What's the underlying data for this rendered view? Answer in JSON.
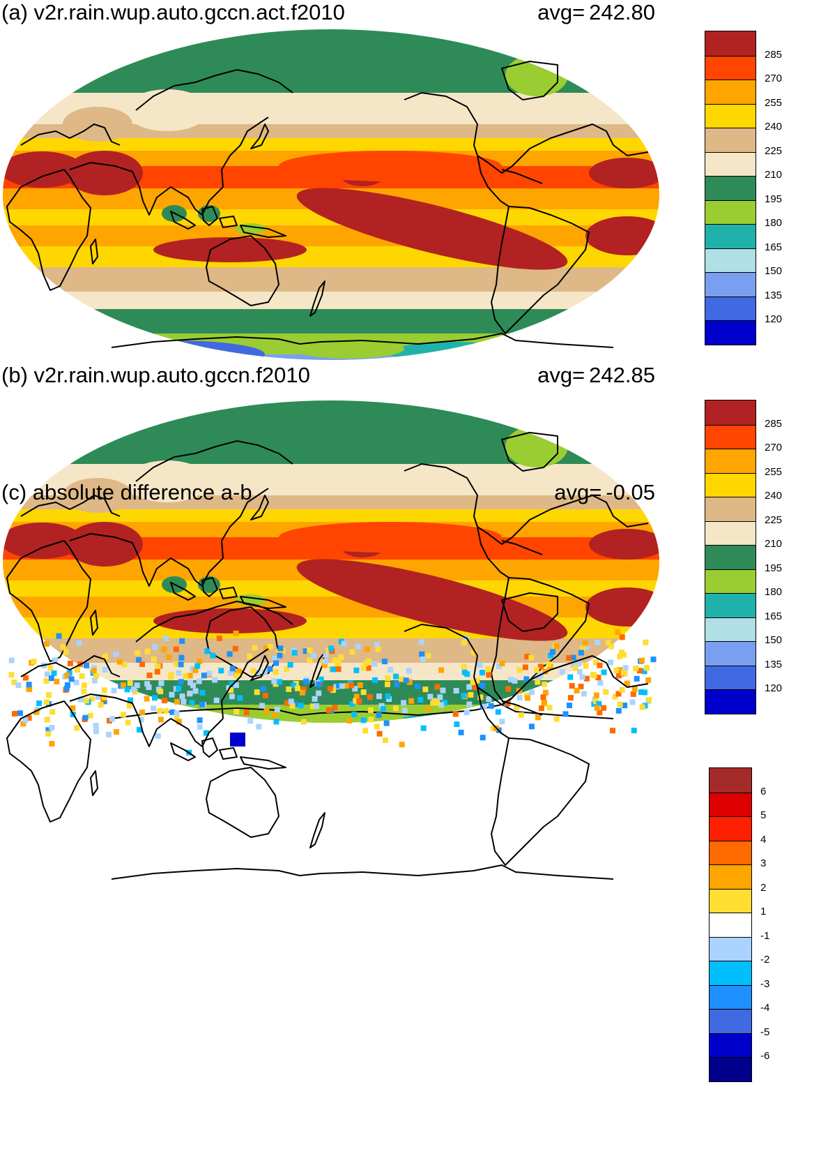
{
  "panels": [
    {
      "id": "a",
      "title": "(a) v2r.rain.wup.auto.gccn.act.f2010",
      "avg_label": "avg=",
      "avg_value": "242.80",
      "colorbar": {
        "labels": [
          "285",
          "270",
          "255",
          "240",
          "225",
          "210",
          "195",
          "180",
          "165",
          "150",
          "135",
          "120"
        ],
        "colors": [
          "#b22222",
          "#ff4500",
          "#ffa500",
          "#ffd700",
          "#deb887",
          "#f5e6c8",
          "#2e8b57",
          "#9acd32",
          "#20b2aa",
          "#b0e0e6",
          "#7b9ff0",
          "#4169e1",
          "#0000cd"
        ]
      }
    },
    {
      "id": "b",
      "title": "(b) v2r.rain.wup.auto.gccn.f2010",
      "avg_label": "avg=",
      "avg_value": "242.85",
      "colorbar": {
        "labels": [
          "285",
          "270",
          "255",
          "240",
          "225",
          "210",
          "195",
          "180",
          "165",
          "150",
          "135",
          "120"
        ],
        "colors": [
          "#b22222",
          "#ff4500",
          "#ffa500",
          "#ffd700",
          "#deb887",
          "#f5e6c8",
          "#2e8b57",
          "#9acd32",
          "#20b2aa",
          "#b0e0e6",
          "#7b9ff0",
          "#4169e1",
          "#0000cd"
        ]
      }
    },
    {
      "id": "c",
      "title": "(c) absolute difference a-b",
      "avg_label": "avg=",
      "avg_value": "-0.05",
      "colorbar": {
        "labels": [
          "6",
          "5",
          "4",
          "3",
          "2",
          "1",
          "-1",
          "-2",
          "-3",
          "-4",
          "-5",
          "-6"
        ],
        "colors": [
          "#a52a2a",
          "#dd0000",
          "#ff2000",
          "#ff6a00",
          "#ffa500",
          "#ffdd33",
          "#ffffff",
          "#aad4ff",
          "#00bfff",
          "#1e90ff",
          "#4169e1",
          "#0000cd",
          "#00008b"
        ]
      }
    }
  ]
}
